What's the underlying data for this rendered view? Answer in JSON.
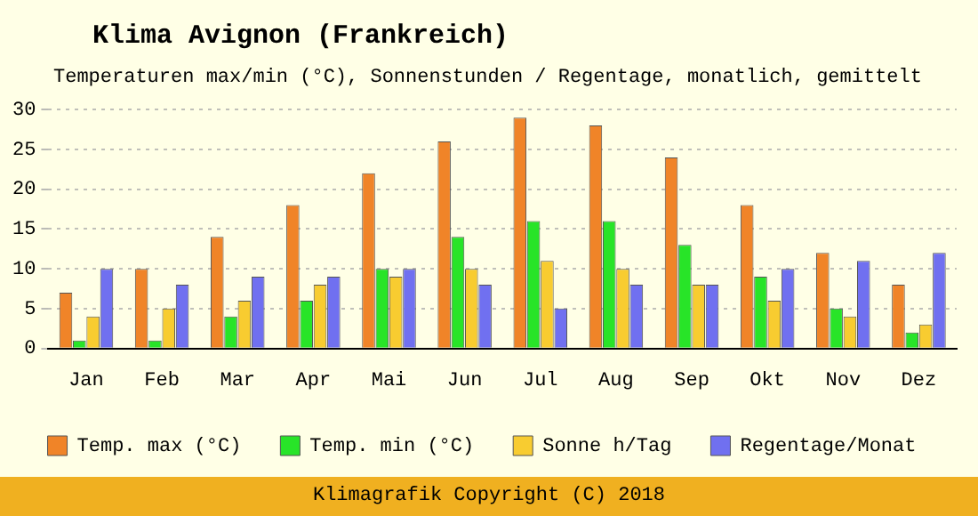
{
  "chart_data": {
    "type": "bar",
    "title": "Klima Avignon (Frankreich)",
    "subtitle": "Temperaturen max/min (°C), Sonnenstunden / Regentage, monatlich, gemittelt",
    "categories": [
      "Jan",
      "Feb",
      "Mar",
      "Apr",
      "Mai",
      "Jun",
      "Jul",
      "Aug",
      "Sep",
      "Okt",
      "Nov",
      "Dez"
    ],
    "series": [
      {
        "name": "Temp. max (°C)",
        "color": "#f08428",
        "values": [
          7,
          10,
          14,
          18,
          22,
          26,
          29,
          28,
          24,
          18,
          12,
          8
        ]
      },
      {
        "name": "Temp. min (°C)",
        "color": "#28e428",
        "values": [
          1,
          1,
          4,
          6,
          10,
          14,
          16,
          16,
          13,
          9,
          5,
          2
        ]
      },
      {
        "name": "Sonne h/Tag",
        "color": "#f8cc30",
        "values": [
          4,
          5,
          6,
          8,
          9,
          10,
          11,
          10,
          8,
          6,
          4,
          3
        ]
      },
      {
        "name": "Regentage/Monat",
        "color": "#7070f0",
        "values": [
          10,
          8,
          9,
          9,
          10,
          8,
          5,
          8,
          8,
          10,
          11,
          12
        ]
      }
    ],
    "ylim": [
      0,
      30
    ],
    "yticks": [
      0,
      5,
      10,
      15,
      20,
      25,
      30
    ],
    "grid": "y",
    "legend": "bottom",
    "annotations": [
      "Klimagrafik Copyright (C) 2018"
    ]
  }
}
